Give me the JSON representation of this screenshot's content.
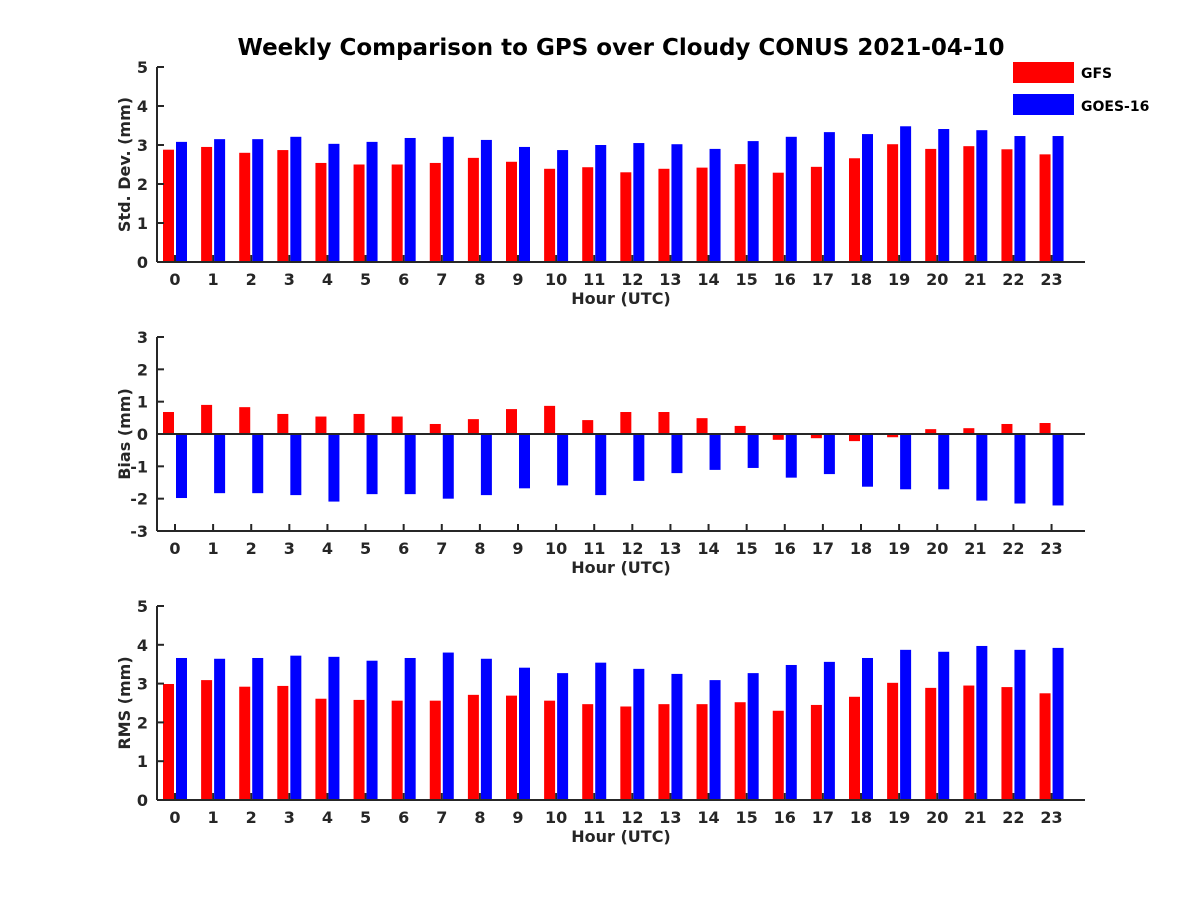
{
  "title": "Weekly Comparison to GPS over Cloudy CONUS 2021-04-10",
  "colors": {
    "GFS": "#ff0000",
    "GOES-16": "#0000ff"
  },
  "legend": {
    "position": "top-right",
    "entries": [
      "GFS",
      "GOES-16"
    ]
  },
  "chart_data": [
    {
      "type": "bar",
      "xlabel": "Hour (UTC)",
      "ylabel": "Std. Dev. (mm)",
      "ylim": [
        0,
        5
      ],
      "yticks": [
        0,
        1,
        2,
        3,
        4,
        5
      ],
      "categories": [
        "0",
        "1",
        "2",
        "3",
        "4",
        "5",
        "6",
        "7",
        "8",
        "9",
        "10",
        "11",
        "12",
        "13",
        "14",
        "15",
        "16",
        "17",
        "18",
        "19",
        "20",
        "21",
        "22",
        "23"
      ],
      "series": [
        {
          "name": "GFS",
          "values": [
            2.88,
            2.95,
            2.8,
            2.87,
            2.54,
            2.5,
            2.5,
            2.54,
            2.67,
            2.57,
            2.39,
            2.43,
            2.3,
            2.39,
            2.42,
            2.51,
            2.29,
            2.44,
            2.66,
            3.02,
            2.9,
            2.97,
            2.89,
            2.76
          ]
        },
        {
          "name": "GOES-16",
          "values": [
            3.08,
            3.15,
            3.15,
            3.21,
            3.03,
            3.08,
            3.18,
            3.21,
            3.13,
            2.95,
            2.87,
            3.0,
            3.05,
            3.02,
            2.9,
            3.1,
            3.21,
            3.33,
            3.28,
            3.48,
            3.41,
            3.38,
            3.23,
            3.23
          ]
        }
      ]
    },
    {
      "type": "bar",
      "xlabel": "Hour (UTC)",
      "ylabel": "Bias (mm)",
      "ylim": [
        -3,
        3
      ],
      "yticks": [
        -3,
        -2,
        -1,
        0,
        1,
        2,
        3
      ],
      "categories": [
        "0",
        "1",
        "2",
        "3",
        "4",
        "5",
        "6",
        "7",
        "8",
        "9",
        "10",
        "11",
        "12",
        "13",
        "14",
        "15",
        "16",
        "17",
        "18",
        "19",
        "20",
        "21",
        "22",
        "23"
      ],
      "series": [
        {
          "name": "GFS",
          "values": [
            0.68,
            0.9,
            0.83,
            0.62,
            0.54,
            0.62,
            0.54,
            0.31,
            0.46,
            0.77,
            0.87,
            0.43,
            0.68,
            0.68,
            0.49,
            0.25,
            -0.18,
            -0.13,
            -0.22,
            -0.1,
            0.15,
            0.18,
            0.31,
            0.34
          ]
        },
        {
          "name": "GOES-16",
          "values": [
            -1.98,
            -1.83,
            -1.83,
            -1.89,
            -2.09,
            -1.86,
            -1.86,
            -2.0,
            -1.89,
            -1.68,
            -1.59,
            -1.89,
            -1.45,
            -1.21,
            -1.11,
            -1.05,
            -1.35,
            -1.24,
            -1.63,
            -1.71,
            -1.71,
            -2.06,
            -2.15,
            -2.21
          ]
        }
      ]
    },
    {
      "type": "bar",
      "xlabel": "Hour (UTC)",
      "ylabel": "RMS (mm)",
      "ylim": [
        0,
        5
      ],
      "yticks": [
        0,
        1,
        2,
        3,
        4,
        5
      ],
      "categories": [
        "0",
        "1",
        "2",
        "3",
        "4",
        "5",
        "6",
        "7",
        "8",
        "9",
        "10",
        "11",
        "12",
        "13",
        "14",
        "15",
        "16",
        "17",
        "18",
        "19",
        "20",
        "21",
        "22",
        "23"
      ],
      "series": [
        {
          "name": "GFS",
          "values": [
            2.99,
            3.09,
            2.92,
            2.94,
            2.61,
            2.58,
            2.56,
            2.56,
            2.71,
            2.69,
            2.56,
            2.47,
            2.41,
            2.47,
            2.47,
            2.52,
            2.3,
            2.45,
            2.66,
            3.02,
            2.89,
            2.95,
            2.91,
            2.75
          ]
        },
        {
          "name": "GOES-16",
          "values": [
            3.66,
            3.64,
            3.66,
            3.72,
            3.69,
            3.59,
            3.66,
            3.8,
            3.64,
            3.41,
            3.27,
            3.54,
            3.38,
            3.25,
            3.09,
            3.27,
            3.48,
            3.56,
            3.66,
            3.87,
            3.82,
            3.97,
            3.87,
            3.92
          ]
        }
      ]
    }
  ]
}
